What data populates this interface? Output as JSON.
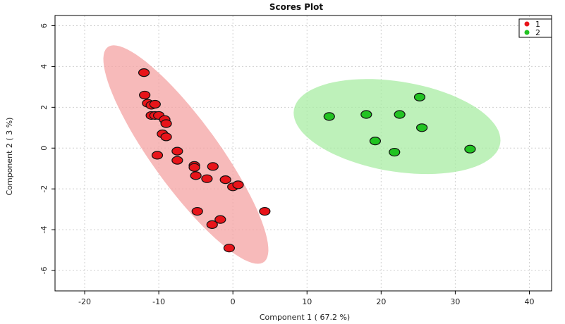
{
  "chart_data": {
    "type": "scatter",
    "title": "Scores Plot",
    "xlabel": "Component 1 ( 67.2 %)",
    "ylabel": "Component 2 ( 3 %)",
    "xlim": [
      -24,
      43
    ],
    "ylim": [
      -7,
      6.5
    ],
    "xticks": [
      -20,
      -10,
      0,
      10,
      20,
      30,
      40
    ],
    "yticks": [
      -6,
      -4,
      -2,
      0,
      2,
      4,
      6
    ],
    "grid": true,
    "legend_position": "top-right",
    "series": [
      {
        "name": "1",
        "color": "#e8141a",
        "ellipse_color": "#f4a3a3",
        "points": [
          [
            -12.0,
            3.7
          ],
          [
            -11.9,
            2.6
          ],
          [
            -11.5,
            2.2
          ],
          [
            -11.0,
            2.1
          ],
          [
            -10.5,
            2.15
          ],
          [
            -11.0,
            1.6
          ],
          [
            -10.5,
            1.6
          ],
          [
            -10.0,
            1.6
          ],
          [
            -9.2,
            1.4
          ],
          [
            -9.0,
            1.2
          ],
          [
            -9.5,
            0.7
          ],
          [
            -9.0,
            0.55
          ],
          [
            -10.2,
            -0.35
          ],
          [
            -7.5,
            -0.15
          ],
          [
            -7.5,
            -0.6
          ],
          [
            -5.2,
            -0.85
          ],
          [
            -5.2,
            -0.95
          ],
          [
            -2.7,
            -0.9
          ],
          [
            -5.0,
            -1.35
          ],
          [
            -3.5,
            -1.5
          ],
          [
            -1.0,
            -1.55
          ],
          [
            0.0,
            -1.9
          ],
          [
            0.7,
            -1.8
          ],
          [
            4.3,
            -3.1
          ],
          [
            -4.8,
            -3.1
          ],
          [
            -1.7,
            -3.5
          ],
          [
            -2.8,
            -3.75
          ],
          [
            -0.5,
            -4.9
          ]
        ]
      },
      {
        "name": "2",
        "color": "#22c322",
        "ellipse_color": "#a8eca3",
        "points": [
          [
            13.0,
            1.55
          ],
          [
            18.0,
            1.65
          ],
          [
            22.5,
            1.65
          ],
          [
            25.2,
            2.5
          ],
          [
            25.5,
            1.0
          ],
          [
            19.2,
            0.35
          ],
          [
            21.8,
            -0.2
          ],
          [
            32.0,
            -0.05
          ]
        ]
      }
    ]
  }
}
